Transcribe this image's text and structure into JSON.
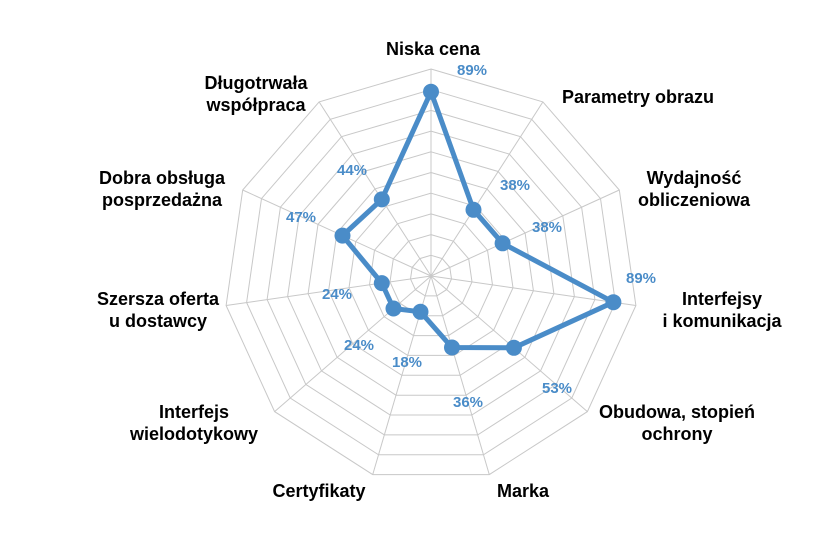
{
  "chart_data": {
    "type": "radar",
    "title": "",
    "categories": [
      [
        "Niska cena"
      ],
      [
        "Parametry obrazu"
      ],
      [
        "Wydajność",
        "obliczeniowa"
      ],
      [
        "Interfejsy",
        "i komunikacja"
      ],
      [
        "Obudowa, stopień",
        "ochrony"
      ],
      [
        "Marka"
      ],
      [
        "Certyfikaty"
      ],
      [
        "Interfejs",
        "wielodotykowy"
      ],
      [
        "Szersza oferta",
        "u dostawcy"
      ],
      [
        "Dobra obsługa",
        "posprzedażna"
      ],
      [
        "Długotrwała",
        "współpraca"
      ]
    ],
    "series": [
      {
        "values": [
          89,
          38,
          38,
          89,
          53,
          36,
          18,
          24,
          24,
          47,
          44
        ],
        "labels": [
          "89%",
          "38%",
          "38%",
          "89%",
          "53%",
          "36%",
          "18%",
          "24%",
          "24%",
          "47%",
          "44%"
        ]
      }
    ],
    "rlim": [
      0,
      100
    ],
    "grid": true,
    "gridlines": 10,
    "colors": {
      "series": "#4a8cc8",
      "grid": "#c8c8c8",
      "label": "#000000"
    }
  }
}
